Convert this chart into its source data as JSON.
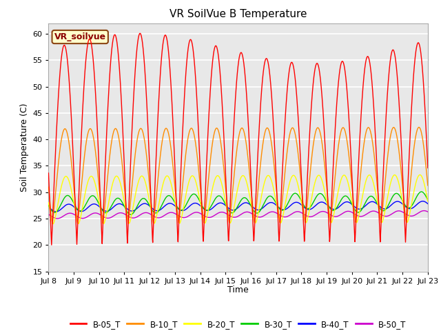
{
  "title": "VR SoilVue B Temperature",
  "ylabel": "Soil Temperature (C)",
  "xlabel": "Time",
  "ylim": [
    15,
    62
  ],
  "yticks": [
    15,
    20,
    25,
    30,
    35,
    40,
    45,
    50,
    55,
    60
  ],
  "series_colors": {
    "B-05_T": "#ff0000",
    "B-10_T": "#ff8c00",
    "B-20_T": "#ffff00",
    "B-30_T": "#00cc00",
    "B-40_T": "#0000ff",
    "B-50_T": "#cc00cc"
  },
  "legend_label": "VR_soilvue",
  "legend_box_facecolor": "#ffffcc",
  "legend_box_edgecolor": "#8b4513",
  "background_color": "#ffffff",
  "plot_bg_color": "#e8e8e8",
  "grid_color": "#ffffff",
  "start_day": 8,
  "end_day": 23,
  "n_points": 1500,
  "series_linewidth": 1.0
}
